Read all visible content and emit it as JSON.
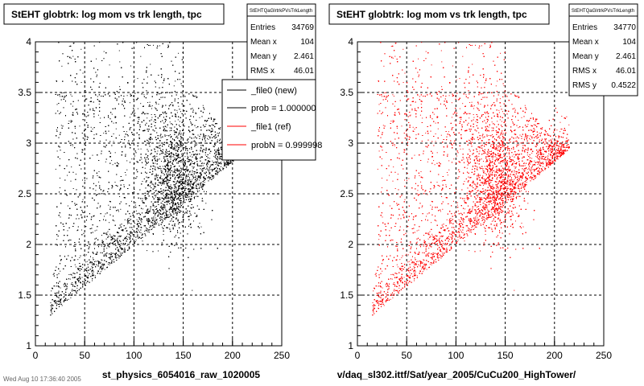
{
  "chart_data": [
    {
      "type": "scatter",
      "title": "StEHT globtrk: log mom vs trk length, tpc",
      "xlabel": "st_physics_6054016_raw_1020005",
      "ylabel": "",
      "xlim": [
        0,
        250
      ],
      "ylim": [
        1,
        4
      ],
      "x_ticks": [
        "0",
        "50",
        "100",
        "150",
        "200",
        "250"
      ],
      "y_ticks": [
        "1",
        "1.5",
        "2",
        "2.5",
        "3",
        "3.5",
        "4"
      ],
      "grid": true,
      "marker_color": "#000000",
      "stats": {
        "name": "StEHTQaGlrtrkPVsTrkLength",
        "rows": [
          {
            "label": "Entries",
            "value": "34769"
          },
          {
            "label": "Mean x",
            "value": "104"
          },
          {
            "label": "Mean y",
            "value": "2.461"
          },
          {
            "label": "RMS x",
            "value": "46.01"
          }
        ]
      },
      "legend": {
        "placement": "top-right",
        "entries": [
          {
            "label": "_file0 (new)",
            "color": "#000000"
          },
          {
            "label": "prob = 1.000000",
            "color": "#000000"
          },
          {
            "label": "_file1 (ref)",
            "color": "#ff0000"
          },
          {
            "label": "probN = 0.999998",
            "color": "#ff0000"
          }
        ]
      }
    },
    {
      "type": "scatter",
      "title": "StEHT globtrk: log mom vs trk length, tpc",
      "xlabel": "v/daq_sl302.ittf/Sat/year_2005/CuCu200_HighTower/",
      "ylabel": "",
      "xlim": [
        0,
        250
      ],
      "ylim": [
        1,
        4
      ],
      "x_ticks": [
        "0",
        "50",
        "100",
        "150",
        "200",
        "250"
      ],
      "y_ticks": [
        "1",
        "1.5",
        "2",
        "2.5",
        "3",
        "3.5",
        "4"
      ],
      "grid": true,
      "marker_color": "#ff0000",
      "stats": {
        "name": "StEHTQaGlrtrkPVsTrkLength",
        "rows": [
          {
            "label": "Entries",
            "value": "34770"
          },
          {
            "label": "Mean x",
            "value": "104"
          },
          {
            "label": "Mean y",
            "value": "2.461"
          },
          {
            "label": "RMS x",
            "value": "46.01"
          },
          {
            "label": "RMS y",
            "value": "0.4522"
          }
        ]
      }
    }
  ],
  "footer_text": "Wed Aug 10 17:36:40 2005"
}
